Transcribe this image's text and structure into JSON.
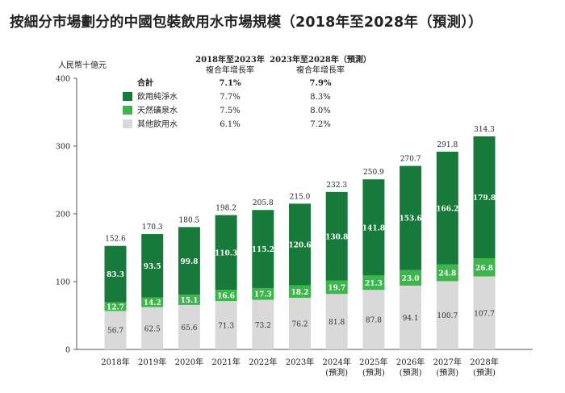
{
  "chart_data": {
    "type": "bar",
    "stacked": true,
    "title": "按細分市場劃分的中國包裝飲用水市場規模（2018年至2028年（預測））",
    "ylabel": "人民幣十億元",
    "ylim": [
      0,
      400
    ],
    "yticks": [
      0,
      100,
      200,
      300,
      400
    ],
    "grid": false,
    "categories": [
      [
        "2018年"
      ],
      [
        "2019年"
      ],
      [
        "2020年"
      ],
      [
        "2021年"
      ],
      [
        "2022年"
      ],
      [
        "2023年"
      ],
      [
        "2024年",
        "(預測)"
      ],
      [
        "2025年",
        "(預測)"
      ],
      [
        "2026年",
        "(預測)"
      ],
      [
        "2027年",
        "(預測)"
      ],
      [
        "2028年",
        "(預測)"
      ]
    ],
    "series": [
      {
        "name": "其他飲用水",
        "color": "#d9d9d9",
        "values": [
          56.7,
          62.5,
          65.6,
          71.3,
          73.2,
          76.2,
          81.8,
          87.8,
          94.1,
          100.7,
          107.7
        ]
      },
      {
        "name": "天然礦泉水",
        "color": "#3cb54a",
        "values": [
          12.7,
          14.2,
          15.1,
          16.6,
          17.3,
          18.2,
          19.7,
          21.3,
          23.0,
          24.8,
          26.8
        ]
      },
      {
        "name": "飲用純淨水",
        "color": "#177a3b",
        "values": [
          83.3,
          93.5,
          99.8,
          110.3,
          115.2,
          120.6,
          130.8,
          141.8,
          153.6,
          166.2,
          179.8
        ]
      }
    ],
    "totals": [
      152.6,
      170.3,
      180.5,
      198.2,
      205.8,
      215.0,
      232.3,
      250.9,
      270.7,
      291.8,
      314.3
    ],
    "legend": {
      "placement": "top-left",
      "header1": [
        "2018年至2023年",
        "複合年增長率"
      ],
      "header2": [
        "2023年至2028年（預測）",
        "複合年增長率"
      ],
      "rows": [
        {
          "label": "合計",
          "swatch": null,
          "cagr1": "7.1%",
          "cagr2": "7.9%",
          "bold": true
        },
        {
          "label": "飲用純淨水",
          "swatch": "#177a3b",
          "cagr1": "7.7%",
          "cagr2": "8.3%",
          "bold": false
        },
        {
          "label": "天然礦泉水",
          "swatch": "#3cb54a",
          "cagr1": "7.5%",
          "cagr2": "8.0%",
          "bold": false
        },
        {
          "label": "其他飲用水",
          "swatch": "#d9d9d9",
          "cagr1": "6.1%",
          "cagr2": "7.2%",
          "bold": false
        }
      ]
    }
  }
}
